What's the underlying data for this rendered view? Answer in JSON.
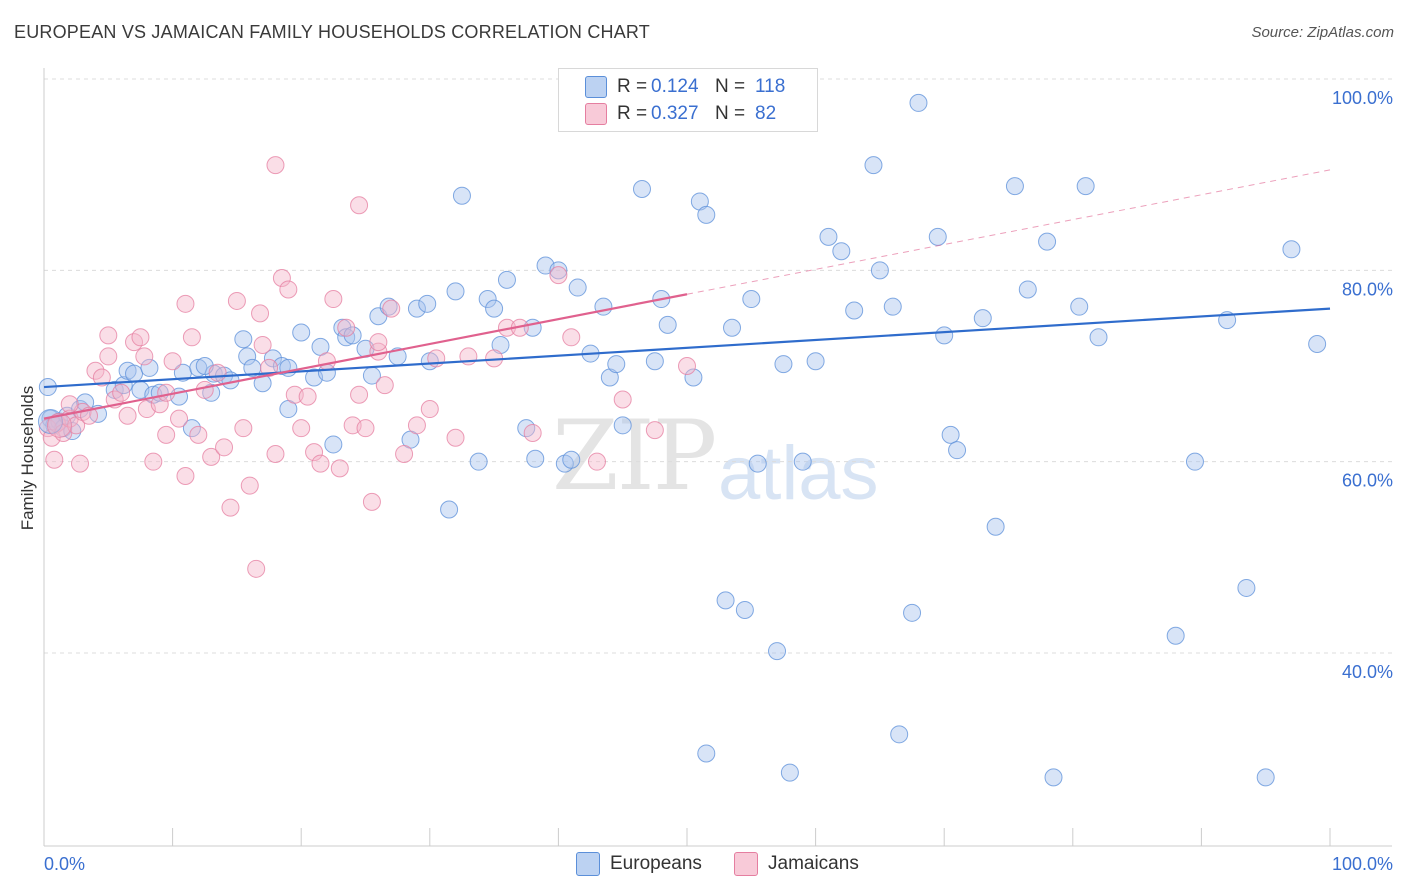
{
  "header": {
    "title": "EUROPEAN VS JAMAICAN FAMILY HOUSEHOLDS CORRELATION CHART",
    "source": "Source: ZipAtlas.com"
  },
  "legend": {
    "rows": [
      {
        "r_label": "R =",
        "r_value": "0.124",
        "n_label": "N =",
        "n_value": "118"
      },
      {
        "r_label": "R =",
        "r_value": "0.327",
        "n_label": "N =",
        "n_value": "82"
      }
    ],
    "bottom": [
      "Europeans",
      "Jamaicans"
    ]
  },
  "watermark": {
    "zip": "ZIP",
    "atlas": "atlas"
  },
  "colors": {
    "blue_fill": "#a9c4ee",
    "blue_stroke": "#5b8fd9",
    "blue_line": "#2f6ccc",
    "pink_fill": "#f5b6c9",
    "pink_stroke": "#e57ea0",
    "pink_line": "#e0618e",
    "axis_text": "#3a6fd0",
    "grid": "#dcdcdc"
  },
  "chart_data": {
    "type": "scatter",
    "title": "EUROPEAN VS JAMAICAN FAMILY HOUSEHOLDS CORRELATION CHART",
    "xlabel": "",
    "ylabel": "Family Households",
    "xlim": [
      0,
      100
    ],
    "ylim": [
      20,
      103
    ],
    "x_tick_labels": [
      "0.0%",
      "100.0%"
    ],
    "y_ticks": [
      40,
      60,
      80,
      100
    ],
    "y_tick_labels": [
      "40.0%",
      "60.0%",
      "80.0%",
      "100.0%"
    ],
    "grid": true,
    "series": [
      {
        "name": "Europeans",
        "r": 0.124,
        "n": 118,
        "trend": {
          "x0": 0,
          "y0": 67.8,
          "x1": 100,
          "y1": 76.0
        },
        "points": [
          [
            0.3,
            67.8
          ],
          [
            0.5,
            64.5
          ],
          [
            0.8,
            63.8
          ],
          [
            1.2,
            64.2
          ],
          [
            1.5,
            63.5
          ],
          [
            1.8,
            64.8
          ],
          [
            2.2,
            63.2
          ],
          [
            2.8,
            65.5
          ],
          [
            3.2,
            66.2
          ],
          [
            4.2,
            65.0
          ],
          [
            5.5,
            67.5
          ],
          [
            6.2,
            68.0
          ],
          [
            6.5,
            69.5
          ],
          [
            7.0,
            69.2
          ],
          [
            7.5,
            67.5
          ],
          [
            8.2,
            69.8
          ],
          [
            8.5,
            67.0
          ],
          [
            9.0,
            67.2
          ],
          [
            10.5,
            66.8
          ],
          [
            10.8,
            69.3
          ],
          [
            11.5,
            63.5
          ],
          [
            12.0,
            69.8
          ],
          [
            13.0,
            67.2
          ],
          [
            13.2,
            69.2
          ],
          [
            14.0,
            69.0
          ],
          [
            14.5,
            68.5
          ],
          [
            15.5,
            72.8
          ],
          [
            15.8,
            71.0
          ],
          [
            16.2,
            69.8
          ],
          [
            17.0,
            68.2
          ],
          [
            17.8,
            70.8
          ],
          [
            18.5,
            70.0
          ],
          [
            19.0,
            69.8
          ],
          [
            20.0,
            73.5
          ],
          [
            21.0,
            68.8
          ],
          [
            21.5,
            72.0
          ],
          [
            22.0,
            69.3
          ],
          [
            23.2,
            74.0
          ],
          [
            23.5,
            73.0
          ],
          [
            24.0,
            73.2
          ],
          [
            25.0,
            71.8
          ],
          [
            25.5,
            69.0
          ],
          [
            26.0,
            75.2
          ],
          [
            26.8,
            76.2
          ],
          [
            27.5,
            71.0
          ],
          [
            28.5,
            62.3
          ],
          [
            29.0,
            76.0
          ],
          [
            29.8,
            76.5
          ],
          [
            31.5,
            55.0
          ],
          [
            32.0,
            77.8
          ],
          [
            32.5,
            87.8
          ],
          [
            33.8,
            60.0
          ],
          [
            34.5,
            77.0
          ],
          [
            35.0,
            76.0
          ],
          [
            35.5,
            72.2
          ],
          [
            36.0,
            79.0
          ],
          [
            37.5,
            63.5
          ],
          [
            38.0,
            74.0
          ],
          [
            38.2,
            60.3
          ],
          [
            39.0,
            80.5
          ],
          [
            40.0,
            80.0
          ],
          [
            40.5,
            59.8
          ],
          [
            41.5,
            78.2
          ],
          [
            42.5,
            71.3
          ],
          [
            43.5,
            76.2
          ],
          [
            44.0,
            68.8
          ],
          [
            44.5,
            70.2
          ],
          [
            45.0,
            63.8
          ],
          [
            46.5,
            88.5
          ],
          [
            47.5,
            70.5
          ],
          [
            48.0,
            77.0
          ],
          [
            48.5,
            74.3
          ],
          [
            50.5,
            68.8
          ],
          [
            51.0,
            87.2
          ],
          [
            51.5,
            85.8
          ],
          [
            53.0,
            45.5
          ],
          [
            53.5,
            74.0
          ],
          [
            54.5,
            44.5
          ],
          [
            55.0,
            77.0
          ],
          [
            55.5,
            59.8
          ],
          [
            57.0,
            40.2
          ],
          [
            57.5,
            70.2
          ],
          [
            58.0,
            27.5
          ],
          [
            59.0,
            60.0
          ],
          [
            60.0,
            70.5
          ],
          [
            61.0,
            83.5
          ],
          [
            62.0,
            82.0
          ],
          [
            63.0,
            75.8
          ],
          [
            64.5,
            91.0
          ],
          [
            65.0,
            80.0
          ],
          [
            66.0,
            76.2
          ],
          [
            66.5,
            31.5
          ],
          [
            67.5,
            44.2
          ],
          [
            68.0,
            97.5
          ],
          [
            69.5,
            83.5
          ],
          [
            70.0,
            73.2
          ],
          [
            70.5,
            62.8
          ],
          [
            71.0,
            61.2
          ],
          [
            73.0,
            75.0
          ],
          [
            74.0,
            53.2
          ],
          [
            75.5,
            88.8
          ],
          [
            76.5,
            78.0
          ],
          [
            78.0,
            83.0
          ],
          [
            78.5,
            27.0
          ],
          [
            80.5,
            76.2
          ],
          [
            81.0,
            88.8
          ],
          [
            82.0,
            73.0
          ],
          [
            88.0,
            41.8
          ],
          [
            89.5,
            60.0
          ],
          [
            92.0,
            74.8
          ],
          [
            93.5,
            46.8
          ],
          [
            95.0,
            27.0
          ],
          [
            97.0,
            82.2
          ],
          [
            99.0,
            72.3
          ],
          [
            19.0,
            65.5
          ],
          [
            22.5,
            61.8
          ],
          [
            30.0,
            70.5
          ],
          [
            41.0,
            60.2
          ],
          [
            51.5,
            29.5
          ],
          [
            12.5,
            70.0
          ]
        ]
      },
      {
        "name": "Jamaicans",
        "r": 0.327,
        "n": 82,
        "trend": {
          "x0": 0,
          "y0": 64.5,
          "x1": 50,
          "y1": 77.5
        },
        "trend_dashed": {
          "x0": 50,
          "y0": 77.5,
          "x1": 100,
          "y1": 90.5
        },
        "points": [
          [
            0.3,
            63.5
          ],
          [
            0.6,
            62.5
          ],
          [
            0.8,
            60.2
          ],
          [
            1.0,
            64.0
          ],
          [
            1.5,
            63.0
          ],
          [
            2.0,
            64.5
          ],
          [
            2.5,
            63.8
          ],
          [
            2.8,
            59.8
          ],
          [
            3.0,
            65.2
          ],
          [
            3.5,
            64.8
          ],
          [
            4.0,
            69.5
          ],
          [
            4.5,
            68.8
          ],
          [
            5.0,
            73.2
          ],
          [
            5.5,
            66.5
          ],
          [
            6.0,
            67.2
          ],
          [
            6.5,
            64.8
          ],
          [
            7.0,
            72.5
          ],
          [
            7.5,
            73.0
          ],
          [
            8.0,
            65.5
          ],
          [
            8.5,
            60.0
          ],
          [
            9.0,
            66.0
          ],
          [
            9.5,
            62.8
          ],
          [
            10.0,
            70.5
          ],
          [
            10.5,
            64.5
          ],
          [
            11.0,
            58.5
          ],
          [
            11.5,
            73.0
          ],
          [
            12.0,
            62.8
          ],
          [
            12.5,
            67.5
          ],
          [
            13.0,
            60.5
          ],
          [
            13.5,
            69.3
          ],
          [
            14.0,
            61.5
          ],
          [
            14.5,
            55.2
          ],
          [
            15.0,
            76.8
          ],
          [
            15.5,
            63.5
          ],
          [
            16.0,
            57.5
          ],
          [
            16.5,
            48.8
          ],
          [
            17.0,
            72.2
          ],
          [
            17.5,
            69.8
          ],
          [
            18.0,
            60.8
          ],
          [
            18.5,
            79.2
          ],
          [
            19.0,
            78.0
          ],
          [
            19.5,
            67.0
          ],
          [
            20.0,
            63.5
          ],
          [
            20.5,
            66.8
          ],
          [
            21.0,
            61.0
          ],
          [
            21.5,
            59.8
          ],
          [
            22.0,
            70.5
          ],
          [
            22.5,
            77.0
          ],
          [
            23.0,
            59.3
          ],
          [
            23.5,
            74.0
          ],
          [
            24.0,
            63.8
          ],
          [
            24.5,
            67.0
          ],
          [
            25.0,
            63.5
          ],
          [
            25.5,
            55.8
          ],
          [
            26.0,
            71.5
          ],
          [
            26.5,
            68.0
          ],
          [
            27.0,
            76.0
          ],
          [
            28.0,
            60.8
          ],
          [
            29.0,
            63.8
          ],
          [
            30.5,
            70.8
          ],
          [
            32.0,
            62.5
          ],
          [
            33.0,
            71.0
          ],
          [
            35.0,
            70.8
          ],
          [
            36.0,
            74.0
          ],
          [
            38.0,
            63.0
          ],
          [
            40.0,
            79.5
          ],
          [
            43.0,
            60.0
          ],
          [
            45.0,
            66.5
          ],
          [
            47.5,
            63.3
          ],
          [
            50.0,
            70.0
          ],
          [
            18.0,
            91.0
          ],
          [
            24.5,
            86.8
          ],
          [
            11.0,
            76.5
          ],
          [
            16.8,
            75.5
          ],
          [
            7.8,
            71.0
          ],
          [
            26.0,
            72.5
          ],
          [
            30.0,
            65.5
          ],
          [
            37.0,
            74.0
          ],
          [
            9.5,
            67.2
          ],
          [
            41.0,
            73.0
          ],
          [
            5.0,
            71.0
          ],
          [
            2.0,
            66.0
          ]
        ]
      }
    ]
  }
}
